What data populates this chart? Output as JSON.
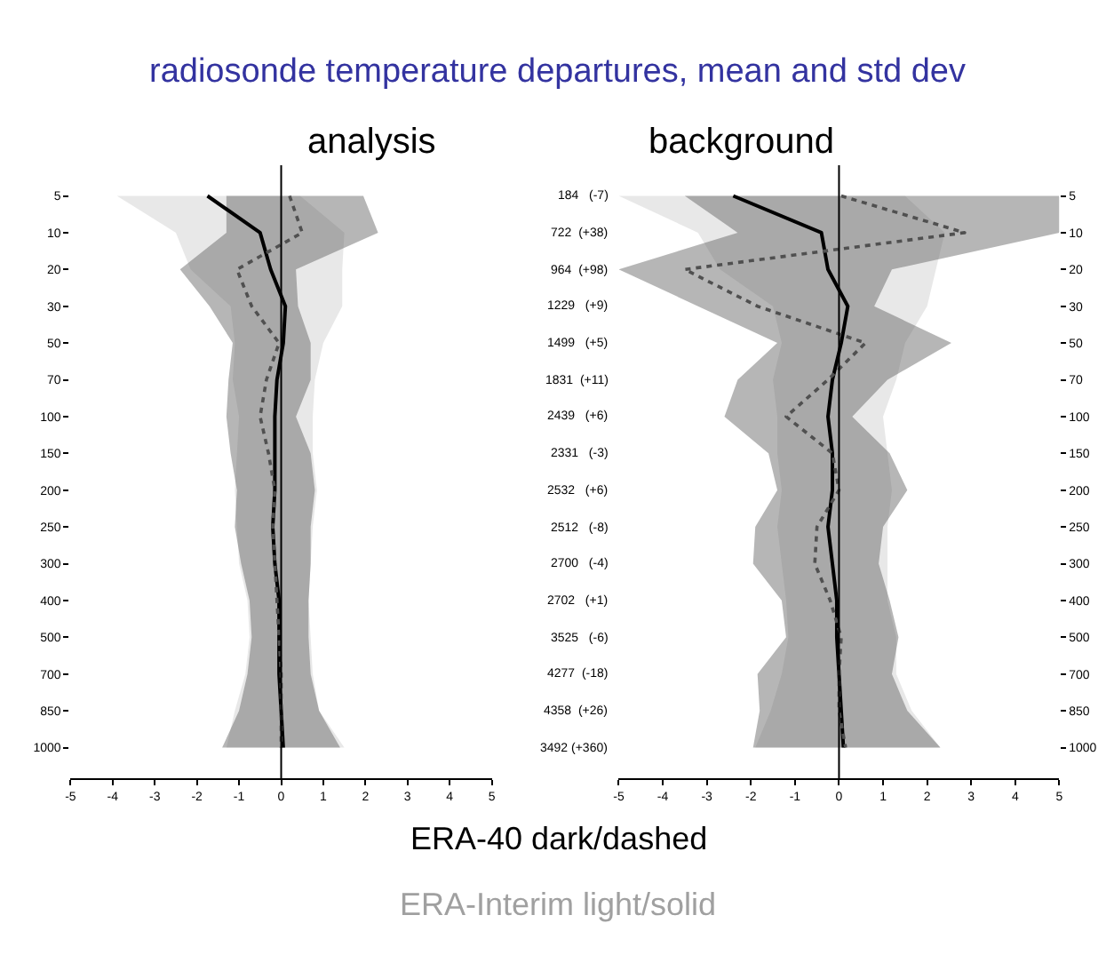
{
  "chart_data": [
    {
      "type": "line",
      "orientation": "horizontal",
      "title": "radiosonde temperature departures, mean and std dev",
      "subtitle": "analysis",
      "categories": [
        "5",
        "10",
        "20",
        "30",
        "50",
        "70",
        "100",
        "150",
        "200",
        "250",
        "300",
        "400",
        "500",
        "700",
        "850",
        "1000"
      ],
      "y2_categories": [
        "184   (-7)",
        "722  (+38)",
        "964  (+98)",
        "1229   (+9)",
        "1499   (+5)",
        "1831  (+11)",
        "2439   (+6)",
        "2331   (-3)",
        "2532   (+6)",
        "2512   (-8)",
        "2700   (-4)",
        "2702   (+1)",
        "3525   (-6)",
        "4277  (-18)",
        "4358  (+26)",
        "3492 (+360)"
      ],
      "xlim": [
        -5,
        5
      ],
      "xticks": [
        -5,
        -4,
        -3,
        -2,
        -1,
        0,
        1,
        2,
        3,
        4,
        5
      ],
      "ref_lines": [
        {
          "axis": "x",
          "value": 0
        }
      ],
      "series": [
        {
          "color": "#000000",
          "line_style": "solid",
          "values": [
            -1.75,
            -0.5,
            -0.25,
            0.1,
            0.05,
            -0.1,
            -0.15,
            -0.15,
            -0.15,
            -0.2,
            -0.15,
            -0.05,
            -0.05,
            -0.05,
            0,
            0.05
          ],
          "lower": [
            -3.9,
            -2.5,
            -2.15,
            -1.2,
            -1.1,
            -1.15,
            -1.0,
            -1.05,
            -1.1,
            -1.05,
            -1.0,
            -0.8,
            -0.75,
            -0.85,
            -1.1,
            -1.3
          ],
          "upper": [
            0.45,
            1.5,
            1.45,
            1.45,
            1.0,
            0.8,
            0.75,
            0.75,
            0.85,
            0.75,
            0.7,
            0.65,
            0.7,
            0.75,
            0.9,
            1.5
          ]
        },
        {
          "color": "#505050",
          "line_style": "dotted",
          "values": [
            0.2,
            0.5,
            -1.05,
            -0.7,
            -0.05,
            -0.35,
            -0.5,
            -0.3,
            -0.15,
            -0.2,
            -0.15,
            -0.1,
            -0.05,
            0,
            0,
            0
          ],
          "lower": [
            -1.3,
            -1.3,
            -2.4,
            -1.7,
            -1.15,
            -1.25,
            -1.3,
            -1.2,
            -1.05,
            -1.1,
            -0.95,
            -0.75,
            -0.7,
            -0.8,
            -1.0,
            -1.4
          ],
          "upper": [
            1.95,
            2.3,
            0.35,
            0.4,
            0.7,
            0.7,
            0.35,
            0.7,
            0.8,
            0.7,
            0.7,
            0.65,
            0.65,
            0.7,
            0.9,
            1.4
          ]
        }
      ]
    },
    {
      "type": "line",
      "orientation": "horizontal",
      "subtitle": "background",
      "categories": [
        "5",
        "10",
        "20",
        "30",
        "50",
        "70",
        "100",
        "150",
        "200",
        "250",
        "300",
        "400",
        "500",
        "700",
        "850",
        "1000"
      ],
      "xlim": [
        -5,
        5
      ],
      "xticks": [
        -5,
        -4,
        -3,
        -2,
        -1,
        0,
        1,
        2,
        3,
        4,
        5
      ],
      "ref_lines": [
        {
          "axis": "x",
          "value": 0
        }
      ],
      "annotations": [
        "ERA-40 dark/dashed",
        "ERA-Interim light/solid"
      ],
      "series": [
        {
          "color": "#000000",
          "line_style": "solid",
          "values": [
            -2.4,
            -0.4,
            -0.25,
            0.2,
            0.05,
            -0.15,
            -0.25,
            -0.15,
            -0.15,
            -0.25,
            -0.15,
            -0.05,
            -0.05,
            0,
            0.05,
            0.1
          ],
          "lower": [
            -5.0,
            -3.2,
            -2.7,
            -1.5,
            -1.3,
            -1.5,
            -1.4,
            -1.4,
            -1.3,
            -1.4,
            -1.3,
            -1.2,
            -1.15,
            -1.3,
            -1.55,
            -1.9
          ],
          "upper": [
            1.5,
            2.4,
            2.2,
            2.0,
            1.5,
            1.3,
            1.0,
            1.1,
            1.2,
            1.1,
            1.1,
            1.1,
            1.3,
            1.3,
            1.65,
            2.3
          ]
        },
        {
          "color": "#505050",
          "line_style": "dotted",
          "values": [
            0.05,
            2.85,
            -3.5,
            -1.85,
            0.6,
            -0.25,
            -1.2,
            -0.15,
            0,
            -0.5,
            -0.55,
            -0.2,
            0.05,
            0,
            0,
            0.15
          ],
          "lower": [
            -3.5,
            -2.3,
            -5.0,
            -3.2,
            -1.4,
            -2.3,
            -2.6,
            -1.6,
            -1.4,
            -1.9,
            -1.95,
            -1.3,
            -1.2,
            -1.85,
            -1.8,
            -1.95
          ],
          "upper": [
            5.0,
            5.0,
            1.2,
            0.8,
            2.55,
            1.1,
            0.3,
            1.15,
            1.55,
            1.0,
            0.9,
            1.15,
            1.35,
            1.2,
            1.55,
            2.3
          ]
        }
      ]
    }
  ]
}
